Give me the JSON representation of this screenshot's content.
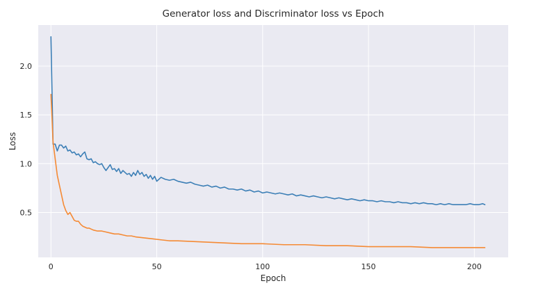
{
  "chart_data": {
    "type": "line",
    "title": "Generator loss and Discriminator loss vs Epoch",
    "xlabel": "Epoch",
    "ylabel": "Loss",
    "xlim": [
      -6,
      216
    ],
    "ylim": [
      0.04,
      2.42
    ],
    "xticks": [
      0,
      50,
      100,
      150,
      200
    ],
    "yticks": [
      0.5,
      1.0,
      1.5,
      2.0
    ],
    "ytick_labels": [
      "0.5",
      "1.0",
      "1.5",
      "2.0"
    ],
    "grid": true,
    "legend": "none",
    "colors": {
      "background": "#eaeaf2",
      "grid": "#ffffff",
      "series_1": "#3c7fb6",
      "series_2": "#f58a34"
    },
    "series": [
      {
        "color": "#3c7fb6",
        "x": [
          0,
          1,
          2,
          3,
          4,
          5,
          6,
          7,
          8,
          9,
          10,
          11,
          12,
          13,
          14,
          15,
          16,
          17,
          18,
          19,
          20,
          21,
          22,
          23,
          24,
          25,
          26,
          27,
          28,
          29,
          30,
          31,
          32,
          33,
          34,
          35,
          36,
          37,
          38,
          39,
          40,
          41,
          42,
          43,
          44,
          45,
          46,
          47,
          48,
          49,
          50,
          52,
          54,
          56,
          58,
          60,
          62,
          64,
          66,
          68,
          70,
          72,
          74,
          76,
          78,
          80,
          82,
          84,
          86,
          88,
          90,
          92,
          94,
          96,
          98,
          100,
          102,
          104,
          106,
          108,
          110,
          112,
          114,
          116,
          118,
          120,
          122,
          124,
          126,
          128,
          130,
          132,
          134,
          136,
          138,
          140,
          142,
          144,
          146,
          148,
          150,
          152,
          154,
          156,
          158,
          160,
          162,
          164,
          166,
          168,
          170,
          172,
          174,
          176,
          178,
          180,
          182,
          184,
          186,
          188,
          190,
          192,
          194,
          196,
          198,
          200,
          202,
          204,
          205
        ],
        "y": [
          2.3,
          1.2,
          1.2,
          1.13,
          1.19,
          1.19,
          1.16,
          1.18,
          1.13,
          1.14,
          1.11,
          1.12,
          1.09,
          1.1,
          1.07,
          1.1,
          1.12,
          1.05,
          1.04,
          1.05,
          1.01,
          1.02,
          1.0,
          0.99,
          1.0,
          0.96,
          0.93,
          0.96,
          0.99,
          0.94,
          0.95,
          0.92,
          0.95,
          0.9,
          0.93,
          0.91,
          0.89,
          0.9,
          0.87,
          0.91,
          0.88,
          0.93,
          0.89,
          0.91,
          0.87,
          0.89,
          0.85,
          0.88,
          0.84,
          0.87,
          0.82,
          0.86,
          0.84,
          0.83,
          0.84,
          0.82,
          0.81,
          0.8,
          0.81,
          0.79,
          0.78,
          0.77,
          0.78,
          0.76,
          0.77,
          0.75,
          0.76,
          0.74,
          0.74,
          0.73,
          0.74,
          0.72,
          0.73,
          0.71,
          0.72,
          0.7,
          0.71,
          0.7,
          0.69,
          0.7,
          0.69,
          0.68,
          0.69,
          0.67,
          0.68,
          0.67,
          0.66,
          0.67,
          0.66,
          0.65,
          0.66,
          0.65,
          0.64,
          0.65,
          0.64,
          0.63,
          0.64,
          0.63,
          0.62,
          0.63,
          0.62,
          0.62,
          0.61,
          0.62,
          0.61,
          0.61,
          0.6,
          0.61,
          0.6,
          0.6,
          0.59,
          0.6,
          0.59,
          0.6,
          0.59,
          0.59,
          0.58,
          0.59,
          0.58,
          0.59,
          0.58,
          0.58,
          0.58,
          0.58,
          0.59,
          0.58,
          0.58,
          0.59,
          0.58
        ]
      },
      {
        "color": "#f58a34",
        "x": [
          0,
          1,
          2,
          3,
          4,
          5,
          6,
          7,
          8,
          9,
          10,
          11,
          12,
          13,
          14,
          15,
          16,
          17,
          18,
          19,
          20,
          22,
          24,
          26,
          28,
          30,
          32,
          34,
          36,
          38,
          40,
          44,
          48,
          52,
          56,
          60,
          70,
          80,
          90,
          100,
          110,
          120,
          130,
          140,
          150,
          160,
          170,
          180,
          190,
          200,
          205
        ],
        "y": [
          1.71,
          1.22,
          1.05,
          0.88,
          0.78,
          0.68,
          0.58,
          0.52,
          0.48,
          0.5,
          0.46,
          0.42,
          0.41,
          0.41,
          0.38,
          0.36,
          0.35,
          0.34,
          0.34,
          0.33,
          0.32,
          0.31,
          0.31,
          0.3,
          0.29,
          0.28,
          0.28,
          0.27,
          0.26,
          0.26,
          0.25,
          0.24,
          0.23,
          0.22,
          0.21,
          0.21,
          0.2,
          0.19,
          0.18,
          0.18,
          0.17,
          0.17,
          0.16,
          0.16,
          0.15,
          0.15,
          0.15,
          0.14,
          0.14,
          0.14,
          0.14
        ]
      }
    ]
  }
}
